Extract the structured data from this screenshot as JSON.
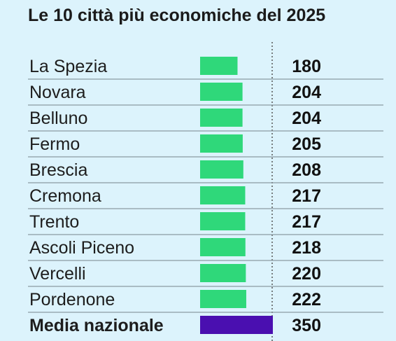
{
  "chart_data": {
    "type": "bar",
    "title": "Le 10 città più economiche del 2025",
    "categories": [
      "La Spezia",
      "Novara",
      "Belluno",
      "Fermo",
      "Brescia",
      "Cremona",
      "Trento",
      "Ascoli Piceno",
      "Vercelli",
      "Pordenone",
      "Media nazionale"
    ],
    "values": [
      180,
      204,
      204,
      205,
      208,
      217,
      217,
      218,
      220,
      222,
      350
    ],
    "value_labels": [
      "180",
      "204",
      "204",
      "205",
      "208",
      "217",
      "217",
      "218",
      "220",
      "222",
      "350"
    ],
    "highlight": "Media nazionale",
    "colors": {
      "bar": "#2fd87a",
      "highlight_bar": "#4a0fb0",
      "background": "#dcf3fc",
      "separator": "#8a9aa3"
    },
    "grid": false,
    "legend": "none"
  }
}
